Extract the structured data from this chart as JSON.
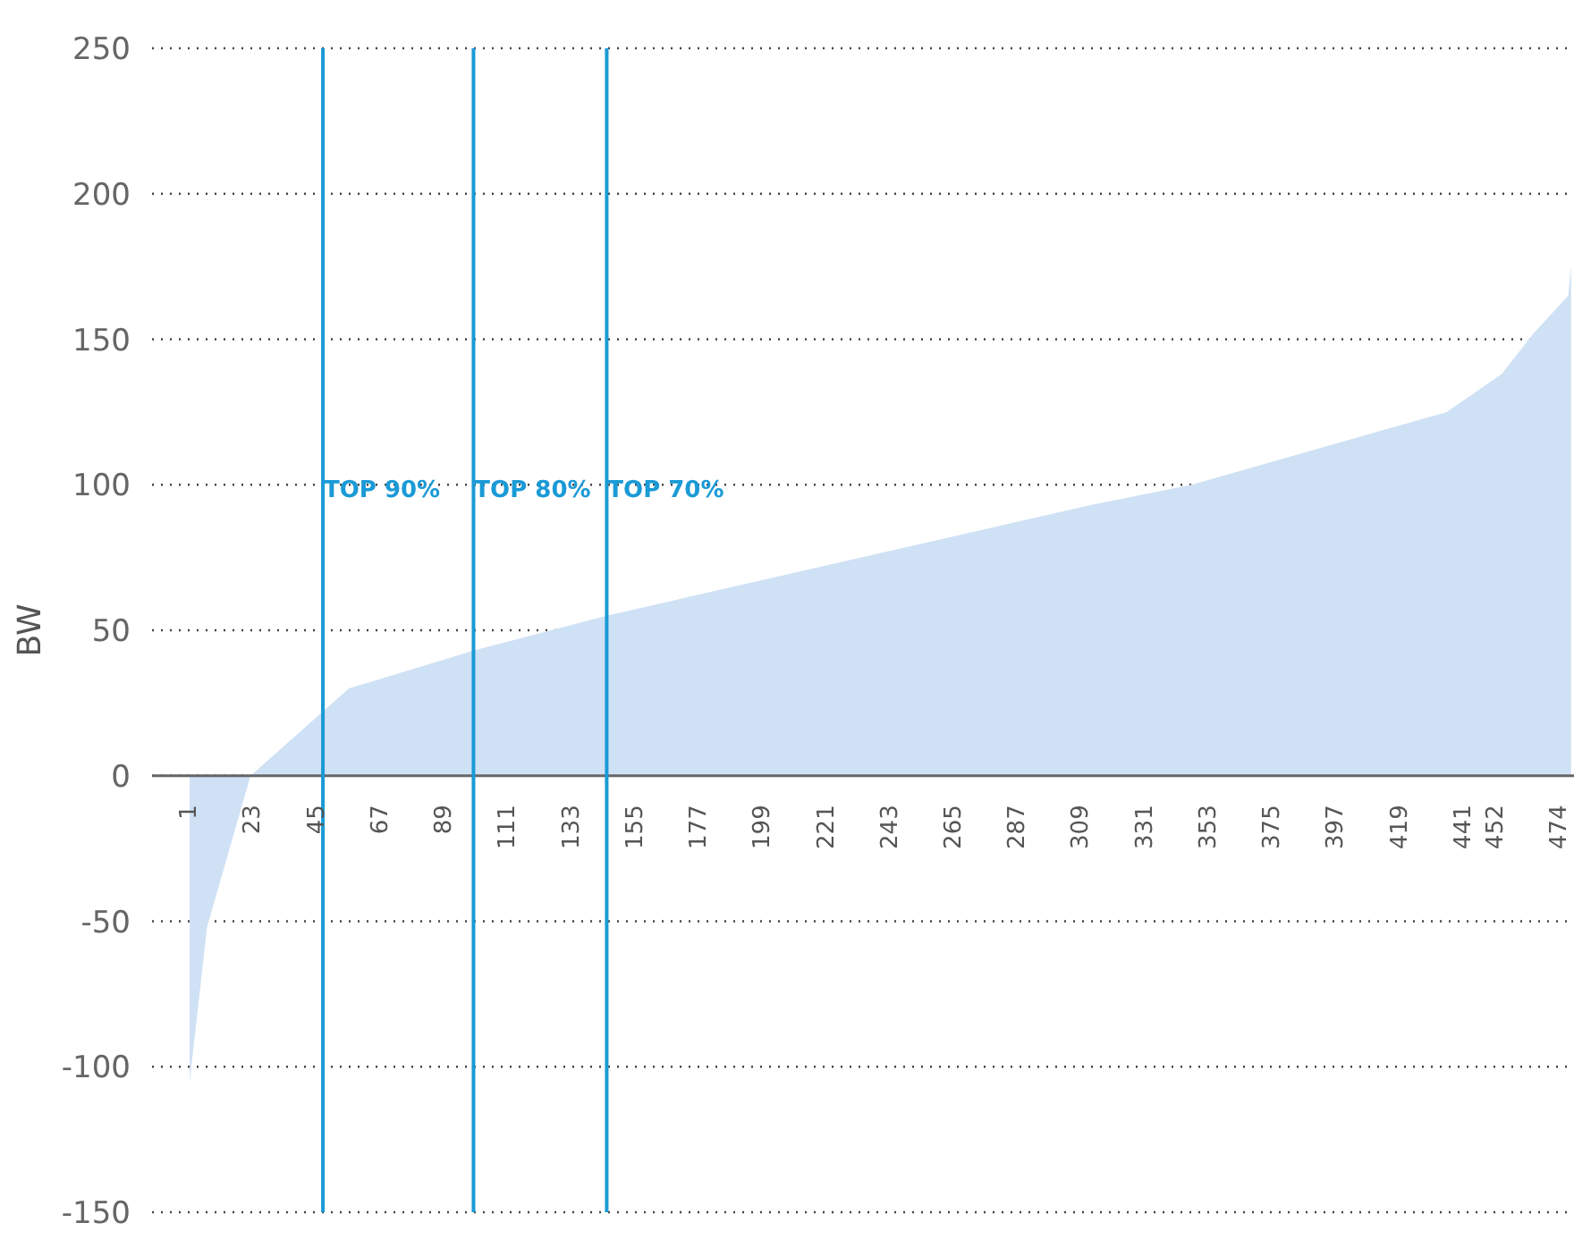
{
  "chart_data": {
    "type": "area",
    "ylabel": "BW",
    "x": [
      1,
      7,
      22,
      56,
      99,
      145,
      312,
      347,
      435,
      454,
      465,
      477,
      478
    ],
    "series": [
      {
        "color": "#cfe1f5",
        "values": [
          -105,
          -52,
          0,
          30,
          43,
          55,
          93,
          100,
          125,
          138,
          152,
          165,
          175
        ]
      }
    ],
    "xlim": [
      -12,
      479
    ],
    "xticks": [
      1,
      23,
      45,
      67,
      89,
      111,
      133,
      155,
      177,
      199,
      221,
      243,
      265,
      287,
      309,
      331,
      353,
      375,
      397,
      419,
      441,
      452,
      474
    ],
    "ylim": [
      -150,
      250
    ],
    "yticks": [
      -150,
      -100,
      -50,
      0,
      50,
      100,
      150,
      200,
      250
    ],
    "grid": "y",
    "ref_lines": [
      {
        "axis": "x",
        "value": 47,
        "label": "TOP 90%",
        "color": "#1a9ad6"
      },
      {
        "axis": "x",
        "value": 99,
        "label": "TOP 80%",
        "color": "#1a9ad6"
      },
      {
        "axis": "x",
        "value": 145,
        "label": "TOP 70%",
        "color": "#1a9ad6"
      }
    ]
  }
}
